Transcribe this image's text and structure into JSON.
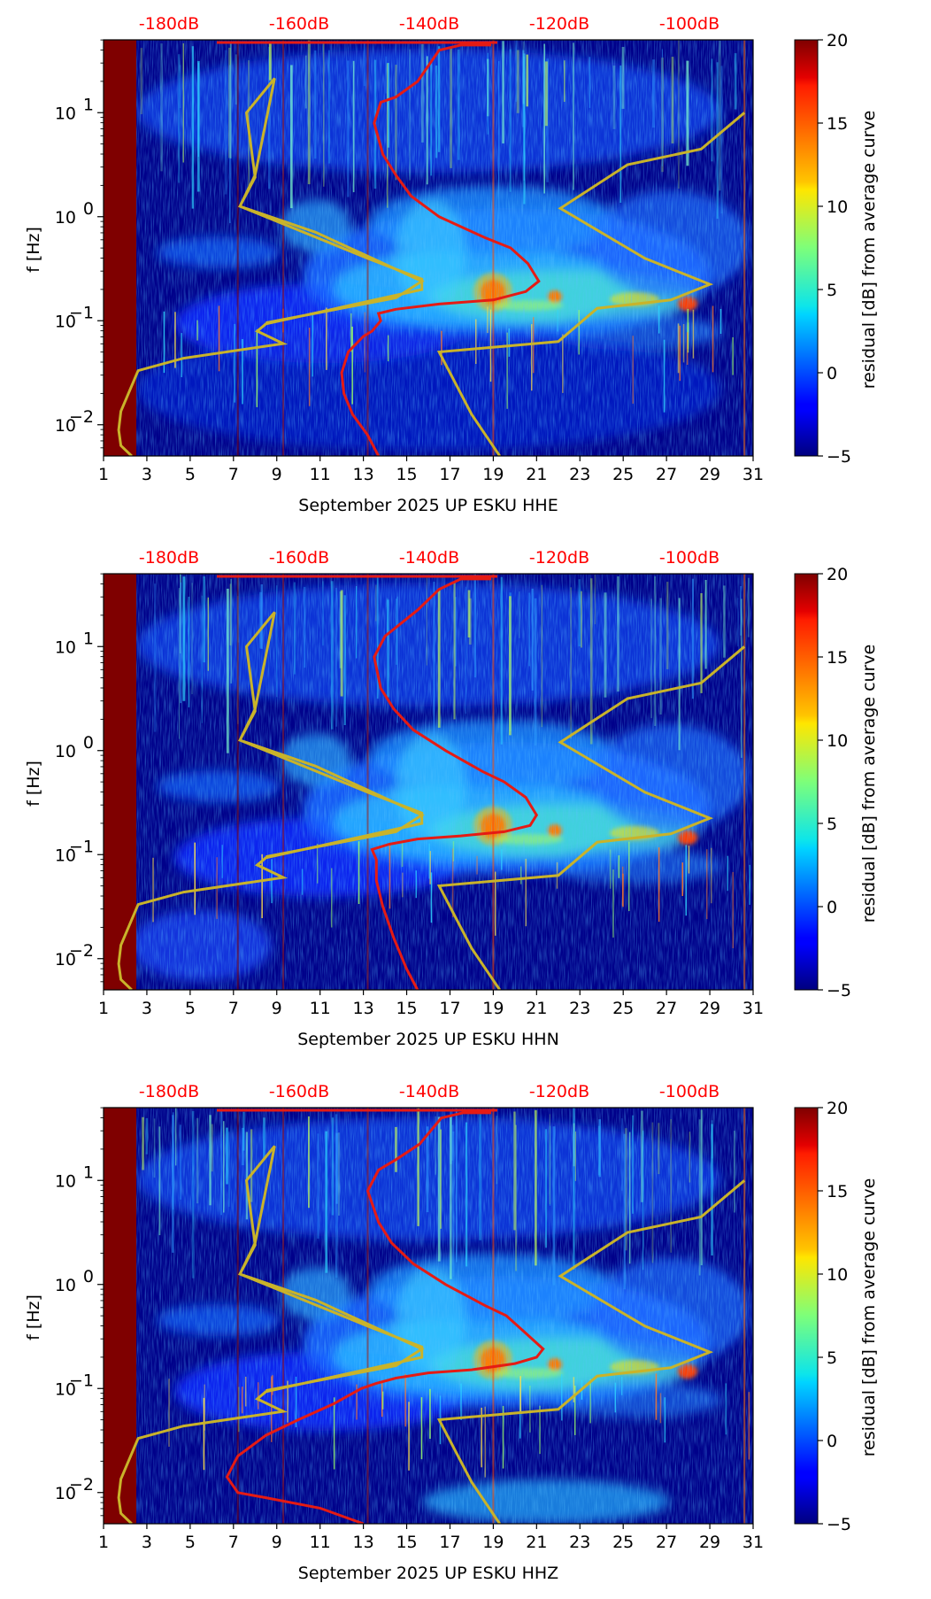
{
  "chart_data": [
    {
      "type": "heatmap",
      "id": "HHE",
      "xlabel": "September 2025 UP ESKU  HHE",
      "ylabel": "f [Hz]",
      "colorbar_label": "residual [dB] from average curve",
      "colorbar_range": [
        -5,
        20
      ],
      "colorbar_ticks": [
        "−5",
        "0",
        "5",
        "10",
        "15",
        "20"
      ],
      "xlim": [
        1,
        31
      ],
      "xticks": [
        "1",
        "3",
        "5",
        "7",
        "9",
        "11",
        "13",
        "15",
        "17",
        "19",
        "21",
        "23",
        "25",
        "27",
        "29",
        "31"
      ],
      "ylim_log10": [
        -2.3,
        1.7
      ],
      "yticks": [
        {
          "base": "10",
          "exp": "−2"
        },
        {
          "base": "10",
          "exp": "−1"
        },
        {
          "base": "10",
          "exp": "0"
        },
        {
          "base": "10",
          "exp": "1"
        }
      ],
      "db_top_axis": [
        "-180dB",
        "-160dB",
        "-140dB",
        "-120dB",
        "-100dB"
      ],
      "red_curve": [
        [
          13.7,
          -2.3
        ],
        [
          13.2,
          -2.1
        ],
        [
          12.5,
          -1.9
        ],
        [
          12.1,
          -1.7
        ],
        [
          12.0,
          -1.5
        ],
        [
          12.3,
          -1.3
        ],
        [
          13.0,
          -1.15
        ],
        [
          13.4,
          -1.1
        ],
        [
          13.8,
          -1.0
        ],
        [
          13.7,
          -0.93
        ],
        [
          14.5,
          -0.89
        ],
        [
          16.5,
          -0.84
        ],
        [
          19.0,
          -0.8
        ],
        [
          20.5,
          -0.72
        ],
        [
          21.1,
          -0.62
        ],
        [
          20.6,
          -0.45
        ],
        [
          19.8,
          -0.3
        ],
        [
          18.6,
          -0.2
        ],
        [
          16.5,
          0.0
        ],
        [
          15.2,
          0.2
        ],
        [
          14.5,
          0.4
        ],
        [
          13.9,
          0.6
        ],
        [
          13.5,
          0.9
        ],
        [
          13.8,
          1.1
        ],
        [
          14.5,
          1.15
        ],
        [
          15.5,
          1.3
        ],
        [
          16.5,
          1.6
        ],
        [
          17.5,
          1.65
        ],
        [
          18.9,
          1.65
        ]
      ],
      "yellow_curve": [
        [
          2.3,
          -2.3
        ],
        [
          1.8,
          -2.2
        ],
        [
          1.7,
          -2.05
        ],
        [
          1.8,
          -1.87
        ],
        [
          2.6,
          -1.48
        ],
        [
          4.7,
          -1.36
        ],
        [
          9.3,
          -1.22
        ],
        [
          8.1,
          -1.1
        ],
        [
          8.5,
          -1.03
        ],
        [
          15.7,
          -0.7
        ],
        [
          15.7,
          -0.6
        ],
        [
          13.2,
          -0.4
        ],
        [
          7.3,
          0.1
        ],
        [
          8.0,
          0.38
        ],
        [
          7.6,
          1.0
        ],
        [
          8.9,
          1.33
        ],
        [
          8.0,
          0.4
        ],
        [
          7.3,
          0.1
        ],
        [
          10.8,
          -0.15
        ],
        [
          13.2,
          -0.38
        ],
        [
          15.7,
          -0.62
        ],
        [
          14.5,
          -0.78
        ],
        [
          8.5,
          -1.02
        ]
      ],
      "yellow_curve2": [
        [
          19.3,
          -2.3
        ],
        [
          18.0,
          -1.9
        ],
        [
          16.5,
          -1.3
        ],
        [
          22.0,
          -1.2
        ],
        [
          23.8,
          -0.88
        ],
        [
          27.2,
          -0.8
        ],
        [
          29.0,
          -0.65
        ],
        [
          26.0,
          -0.4
        ],
        [
          22.1,
          0.08
        ],
        [
          25.2,
          0.5
        ],
        [
          28.6,
          0.65
        ],
        [
          30.6,
          1.0
        ]
      ]
    },
    {
      "type": "heatmap",
      "id": "HHN",
      "xlabel": "September 2025 UP ESKU  HHN",
      "ylabel": "f [Hz]",
      "colorbar_label": "residual [dB] from average curve",
      "colorbar_range": [
        -5,
        20
      ],
      "colorbar_ticks": [
        "−5",
        "0",
        "5",
        "10",
        "15",
        "20"
      ],
      "xlim": [
        1,
        31
      ],
      "xticks": [
        "1",
        "3",
        "5",
        "7",
        "9",
        "11",
        "13",
        "15",
        "17",
        "19",
        "21",
        "23",
        "25",
        "27",
        "29",
        "31"
      ],
      "ylim_log10": [
        -2.3,
        1.7
      ],
      "yticks": [
        {
          "base": "10",
          "exp": "−2"
        },
        {
          "base": "10",
          "exp": "−1"
        },
        {
          "base": "10",
          "exp": "0"
        },
        {
          "base": "10",
          "exp": "1"
        }
      ],
      "db_top_axis": [
        "-180dB",
        "-160dB",
        "-140dB",
        "-120dB",
        "-100dB"
      ],
      "red_curve": [
        [
          15.5,
          -2.3
        ],
        [
          15.0,
          -2.1
        ],
        [
          14.4,
          -1.8
        ],
        [
          13.9,
          -1.5
        ],
        [
          13.6,
          -1.25
        ],
        [
          13.6,
          -1.05
        ],
        [
          13.4,
          -0.95
        ],
        [
          14.2,
          -0.9
        ],
        [
          15.5,
          -0.85
        ],
        [
          17.5,
          -0.82
        ],
        [
          19.5,
          -0.78
        ],
        [
          20.7,
          -0.72
        ],
        [
          21.0,
          -0.62
        ],
        [
          20.5,
          -0.45
        ],
        [
          19.5,
          -0.3
        ],
        [
          18.5,
          -0.2
        ],
        [
          16.8,
          0.0
        ],
        [
          15.3,
          0.2
        ],
        [
          14.4,
          0.4
        ],
        [
          13.8,
          0.6
        ],
        [
          13.5,
          0.9
        ],
        [
          14.0,
          1.1
        ],
        [
          14.6,
          1.2
        ],
        [
          15.5,
          1.35
        ],
        [
          16.5,
          1.55
        ],
        [
          17.5,
          1.65
        ],
        [
          18.9,
          1.65
        ]
      ],
      "yellow_curve": [
        [
          2.3,
          -2.3
        ],
        [
          1.8,
          -2.2
        ],
        [
          1.7,
          -2.05
        ],
        [
          1.8,
          -1.87
        ],
        [
          2.6,
          -1.48
        ],
        [
          4.7,
          -1.36
        ],
        [
          9.3,
          -1.22
        ],
        [
          8.1,
          -1.1
        ],
        [
          8.5,
          -1.03
        ],
        [
          15.7,
          -0.7
        ],
        [
          15.7,
          -0.6
        ],
        [
          13.2,
          -0.4
        ],
        [
          7.3,
          0.1
        ],
        [
          8.0,
          0.38
        ],
        [
          7.6,
          1.0
        ],
        [
          8.9,
          1.33
        ],
        [
          8.0,
          0.4
        ],
        [
          7.3,
          0.1
        ],
        [
          10.8,
          -0.15
        ],
        [
          13.2,
          -0.38
        ],
        [
          15.7,
          -0.62
        ],
        [
          14.5,
          -0.78
        ],
        [
          8.5,
          -1.02
        ]
      ],
      "yellow_curve2": [
        [
          19.3,
          -2.3
        ],
        [
          18.0,
          -1.9
        ],
        [
          16.5,
          -1.3
        ],
        [
          22.0,
          -1.2
        ],
        [
          23.8,
          -0.88
        ],
        [
          27.2,
          -0.8
        ],
        [
          29.0,
          -0.65
        ],
        [
          26.0,
          -0.4
        ],
        [
          22.1,
          0.08
        ],
        [
          25.2,
          0.5
        ],
        [
          28.6,
          0.65
        ],
        [
          30.6,
          1.0
        ]
      ]
    },
    {
      "type": "heatmap",
      "id": "HHZ",
      "xlabel": "September 2025 UP ESKU  HHZ",
      "ylabel": "f [Hz]",
      "colorbar_label": "residual [dB] from average curve",
      "colorbar_range": [
        -5,
        20
      ],
      "colorbar_ticks": [
        "−5",
        "0",
        "5",
        "10",
        "15",
        "20"
      ],
      "xlim": [
        1,
        31
      ],
      "xticks": [
        "1",
        "3",
        "5",
        "7",
        "9",
        "11",
        "13",
        "15",
        "17",
        "19",
        "21",
        "23",
        "25",
        "27",
        "29",
        "31"
      ],
      "ylim_log10": [
        -2.3,
        1.7
      ],
      "yticks": [
        {
          "base": "10",
          "exp": "−2"
        },
        {
          "base": "10",
          "exp": "−1"
        },
        {
          "base": "10",
          "exp": "0"
        },
        {
          "base": "10",
          "exp": "1"
        }
      ],
      "db_top_axis": [
        "-180dB",
        "-160dB",
        "-140dB",
        "-120dB",
        "-100dB"
      ],
      "red_curve": [
        [
          13.0,
          -2.3
        ],
        [
          11.0,
          -2.15
        ],
        [
          8.5,
          -2.05
        ],
        [
          7.2,
          -2.0
        ],
        [
          6.7,
          -1.85
        ],
        [
          7.2,
          -1.65
        ],
        [
          8.5,
          -1.45
        ],
        [
          10.0,
          -1.3
        ],
        [
          11.6,
          -1.15
        ],
        [
          12.9,
          -1.0
        ],
        [
          13.6,
          -0.95
        ],
        [
          14.5,
          -0.9
        ],
        [
          16.0,
          -0.85
        ],
        [
          18.0,
          -0.82
        ],
        [
          20.0,
          -0.76
        ],
        [
          21.0,
          -0.7
        ],
        [
          21.3,
          -0.62
        ],
        [
          20.4,
          -0.45
        ],
        [
          19.6,
          -0.3
        ],
        [
          18.6,
          -0.2
        ],
        [
          16.8,
          0.0
        ],
        [
          15.3,
          0.2
        ],
        [
          14.3,
          0.4
        ],
        [
          13.7,
          0.6
        ],
        [
          13.2,
          0.9
        ],
        [
          13.7,
          1.1
        ],
        [
          14.5,
          1.2
        ],
        [
          15.6,
          1.35
        ],
        [
          16.6,
          1.6
        ],
        [
          17.6,
          1.65
        ],
        [
          18.9,
          1.65
        ]
      ],
      "yellow_curve": [
        [
          2.3,
          -2.3
        ],
        [
          1.8,
          -2.2
        ],
        [
          1.7,
          -2.05
        ],
        [
          1.8,
          -1.87
        ],
        [
          2.6,
          -1.48
        ],
        [
          4.7,
          -1.36
        ],
        [
          9.3,
          -1.22
        ],
        [
          8.1,
          -1.1
        ],
        [
          8.5,
          -1.03
        ],
        [
          15.7,
          -0.7
        ],
        [
          15.7,
          -0.6
        ],
        [
          13.2,
          -0.4
        ],
        [
          7.3,
          0.1
        ],
        [
          8.0,
          0.38
        ],
        [
          7.6,
          1.0
        ],
        [
          8.9,
          1.33
        ],
        [
          8.0,
          0.4
        ],
        [
          7.3,
          0.1
        ],
        [
          10.8,
          -0.15
        ],
        [
          13.2,
          -0.38
        ],
        [
          15.7,
          -0.62
        ],
        [
          14.5,
          -0.78
        ],
        [
          8.5,
          -1.02
        ]
      ],
      "yellow_curve2": [
        [
          19.3,
          -2.3
        ],
        [
          18.0,
          -1.9
        ],
        [
          16.5,
          -1.3
        ],
        [
          22.0,
          -1.2
        ],
        [
          23.8,
          -0.88
        ],
        [
          27.2,
          -0.8
        ],
        [
          29.0,
          -0.65
        ],
        [
          26.0,
          -0.4
        ],
        [
          22.1,
          0.08
        ],
        [
          25.2,
          0.5
        ],
        [
          28.6,
          0.65
        ],
        [
          30.6,
          1.0
        ]
      ]
    }
  ],
  "colors": {
    "db_label": "#ff0000",
    "red_curve": "#e51b14",
    "yellow_curve": "#c9b32a",
    "left_band": "#7f0000"
  }
}
